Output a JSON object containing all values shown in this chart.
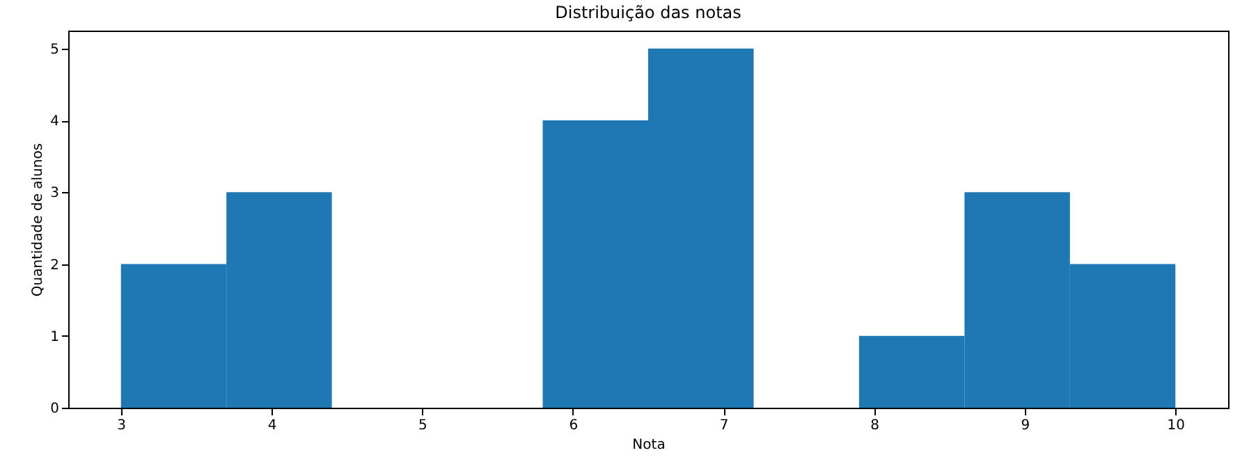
{
  "chart_data": {
    "type": "histogram",
    "title": "Distribuição das notas",
    "xlabel": "Nota",
    "ylabel": "Quantidade de alunos",
    "bins": [
      3,
      3.7,
      4.4,
      5.1,
      5.8,
      6.5,
      7.2,
      7.9,
      8.6,
      9.3,
      10
    ],
    "values": [
      2,
      3,
      0,
      0,
      4,
      5,
      0,
      1,
      3,
      2
    ],
    "color": "#1f77b4",
    "xlim": [
      2.65,
      10.35
    ],
    "xticks": [
      3,
      4,
      5,
      6,
      7,
      8,
      9,
      10
    ],
    "ylim": [
      0,
      5.25
    ],
    "yticks": [
      0,
      1,
      2,
      3,
      4,
      5
    ]
  }
}
